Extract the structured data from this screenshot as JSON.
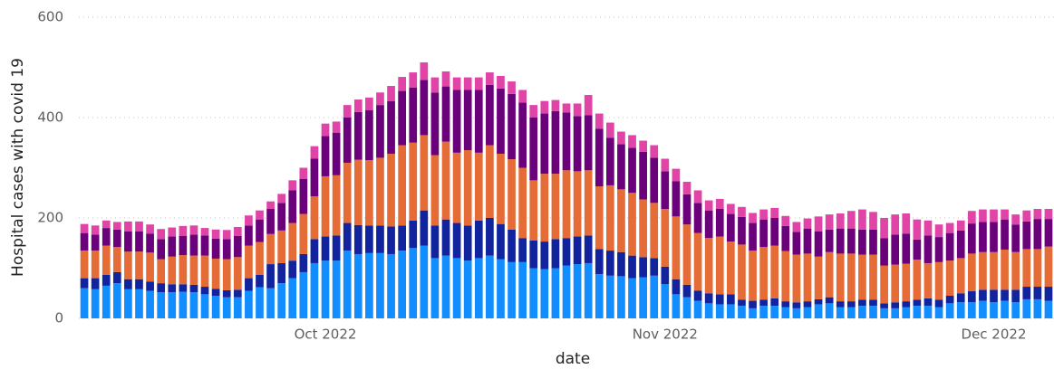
{
  "chart_data": {
    "type": "stacked_bar",
    "x_label": "date",
    "y_label": "Hospital cases with covid 19",
    "categories": [
      null,
      null,
      null,
      null,
      null,
      null,
      null,
      null,
      null,
      null,
      null,
      null,
      null,
      null,
      null,
      null,
      null,
      null,
      null,
      null,
      null,
      null,
      "Oct 2022",
      null,
      null,
      null,
      null,
      null,
      null,
      null,
      null,
      null,
      null,
      null,
      null,
      null,
      null,
      null,
      null,
      null,
      null,
      null,
      null,
      null,
      null,
      null,
      null,
      null,
      null,
      null,
      null,
      null,
      null,
      "Nov 2022",
      null,
      null,
      null,
      null,
      null,
      null,
      null,
      null,
      null,
      null,
      null,
      null,
      null,
      null,
      null,
      null,
      null,
      null,
      null,
      null,
      null,
      null,
      null,
      null,
      null,
      null,
      null,
      null,
      null,
      "Dec 2022",
      null,
      null,
      null,
      null,
      null
    ],
    "series": [
      {
        "color": "#118dff",
        "values": [
          60,
          58,
          65,
          70,
          58,
          58,
          55,
          52,
          52,
          53,
          52,
          48,
          45,
          42,
          42,
          55,
          62,
          60,
          70,
          80,
          92,
          110,
          115,
          115,
          135,
          128,
          130,
          130,
          128,
          135,
          140,
          145,
          120,
          125,
          120,
          115,
          120,
          125,
          118,
          112,
          112,
          100,
          98,
          100,
          105,
          108,
          110,
          88,
          85,
          84,
          80,
          82,
          85,
          68,
          48,
          42,
          35,
          30,
          28,
          28,
          25,
          20,
          25,
          25,
          22,
          20,
          22,
          28,
          30,
          22,
          22,
          25,
          25,
          20,
          20,
          22,
          25,
          25,
          22,
          30,
          32,
          32,
          35,
          32,
          35,
          32,
          38,
          38,
          35
        ]
      },
      {
        "color": "#12239e",
        "values": [
          20,
          22,
          22,
          22,
          20,
          20,
          18,
          18,
          16,
          15,
          15,
          15,
          14,
          14,
          15,
          25,
          25,
          48,
          40,
          35,
          36,
          48,
          48,
          50,
          55,
          58,
          55,
          55,
          55,
          50,
          55,
          70,
          65,
          72,
          70,
          70,
          75,
          75,
          70,
          65,
          48,
          55,
          55,
          58,
          55,
          55,
          55,
          50,
          50,
          48,
          45,
          40,
          35,
          35,
          30,
          25,
          20,
          20,
          20,
          20,
          12,
          15,
          12,
          15,
          12,
          12,
          12,
          10,
          12,
          12,
          12,
          12,
          12,
          10,
          12,
          12,
          12,
          15,
          15,
          15,
          18,
          22,
          22,
          25,
          22,
          25,
          25,
          25,
          28
        ]
      },
      {
        "color": "#e66c37",
        "values": [
          55,
          55,
          58,
          50,
          55,
          55,
          58,
          48,
          55,
          58,
          58,
          62,
          60,
          62,
          65,
          65,
          65,
          60,
          65,
          75,
          80,
          85,
          120,
          120,
          120,
          130,
          130,
          135,
          145,
          160,
          155,
          150,
          140,
          155,
          140,
          150,
          135,
          145,
          140,
          140,
          140,
          120,
          135,
          130,
          135,
          130,
          130,
          125,
          130,
          125,
          125,
          115,
          110,
          115,
          125,
          120,
          115,
          110,
          115,
          105,
          110,
          100,
          105,
          105,
          100,
          95,
          95,
          85,
          90,
          95,
          95,
          90,
          90,
          75,
          75,
          75,
          80,
          70,
          75,
          70,
          70,
          75,
          75,
          75,
          80,
          75,
          75,
          75,
          80
        ]
      },
      {
        "color": "#6b007b",
        "values": [
          35,
          32,
          35,
          35,
          40,
          40,
          38,
          40,
          40,
          38,
          42,
          40,
          40,
          40,
          42,
          40,
          45,
          50,
          55,
          65,
          70,
          75,
          80,
          85,
          90,
          95,
          100,
          105,
          105,
          108,
          110,
          110,
          125,
          110,
          125,
          120,
          125,
          120,
          130,
          130,
          130,
          125,
          120,
          125,
          115,
          110,
          110,
          115,
          95,
          90,
          90,
          95,
          90,
          75,
          70,
          60,
          60,
          55,
          55,
          55,
          55,
          55,
          55,
          55,
          50,
          45,
          50,
          50,
          45,
          50,
          50,
          50,
          50,
          55,
          60,
          60,
          40,
          55,
          50,
          55,
          55,
          60,
          60,
          60,
          60,
          55,
          55,
          60,
          55
        ]
      },
      {
        "color": "#e044a7",
        "values": [
          18,
          18,
          15,
          15,
          20,
          20,
          18,
          20,
          18,
          20,
          18,
          15,
          18,
          18,
          18,
          20,
          18,
          15,
          18,
          20,
          22,
          25,
          25,
          22,
          25,
          25,
          25,
          25,
          30,
          28,
          30,
          35,
          30,
          30,
          25,
          25,
          25,
          25,
          25,
          25,
          25,
          25,
          25,
          22,
          18,
          25,
          40,
          30,
          30,
          25,
          25,
          22,
          25,
          25,
          25,
          25,
          25,
          20,
          20,
          20,
          20,
          20,
          20,
          20,
          20,
          20,
          20,
          30,
          30,
          30,
          35,
          40,
          35,
          40,
          40,
          40,
          40,
          30,
          25,
          20,
          20,
          25,
          25,
          25,
          20,
          20,
          22,
          20,
          20
        ]
      }
    ],
    "ylim": [
      0,
      600
    ],
    "yticks": [
      0,
      200,
      400,
      600
    ],
    "grid": true
  }
}
